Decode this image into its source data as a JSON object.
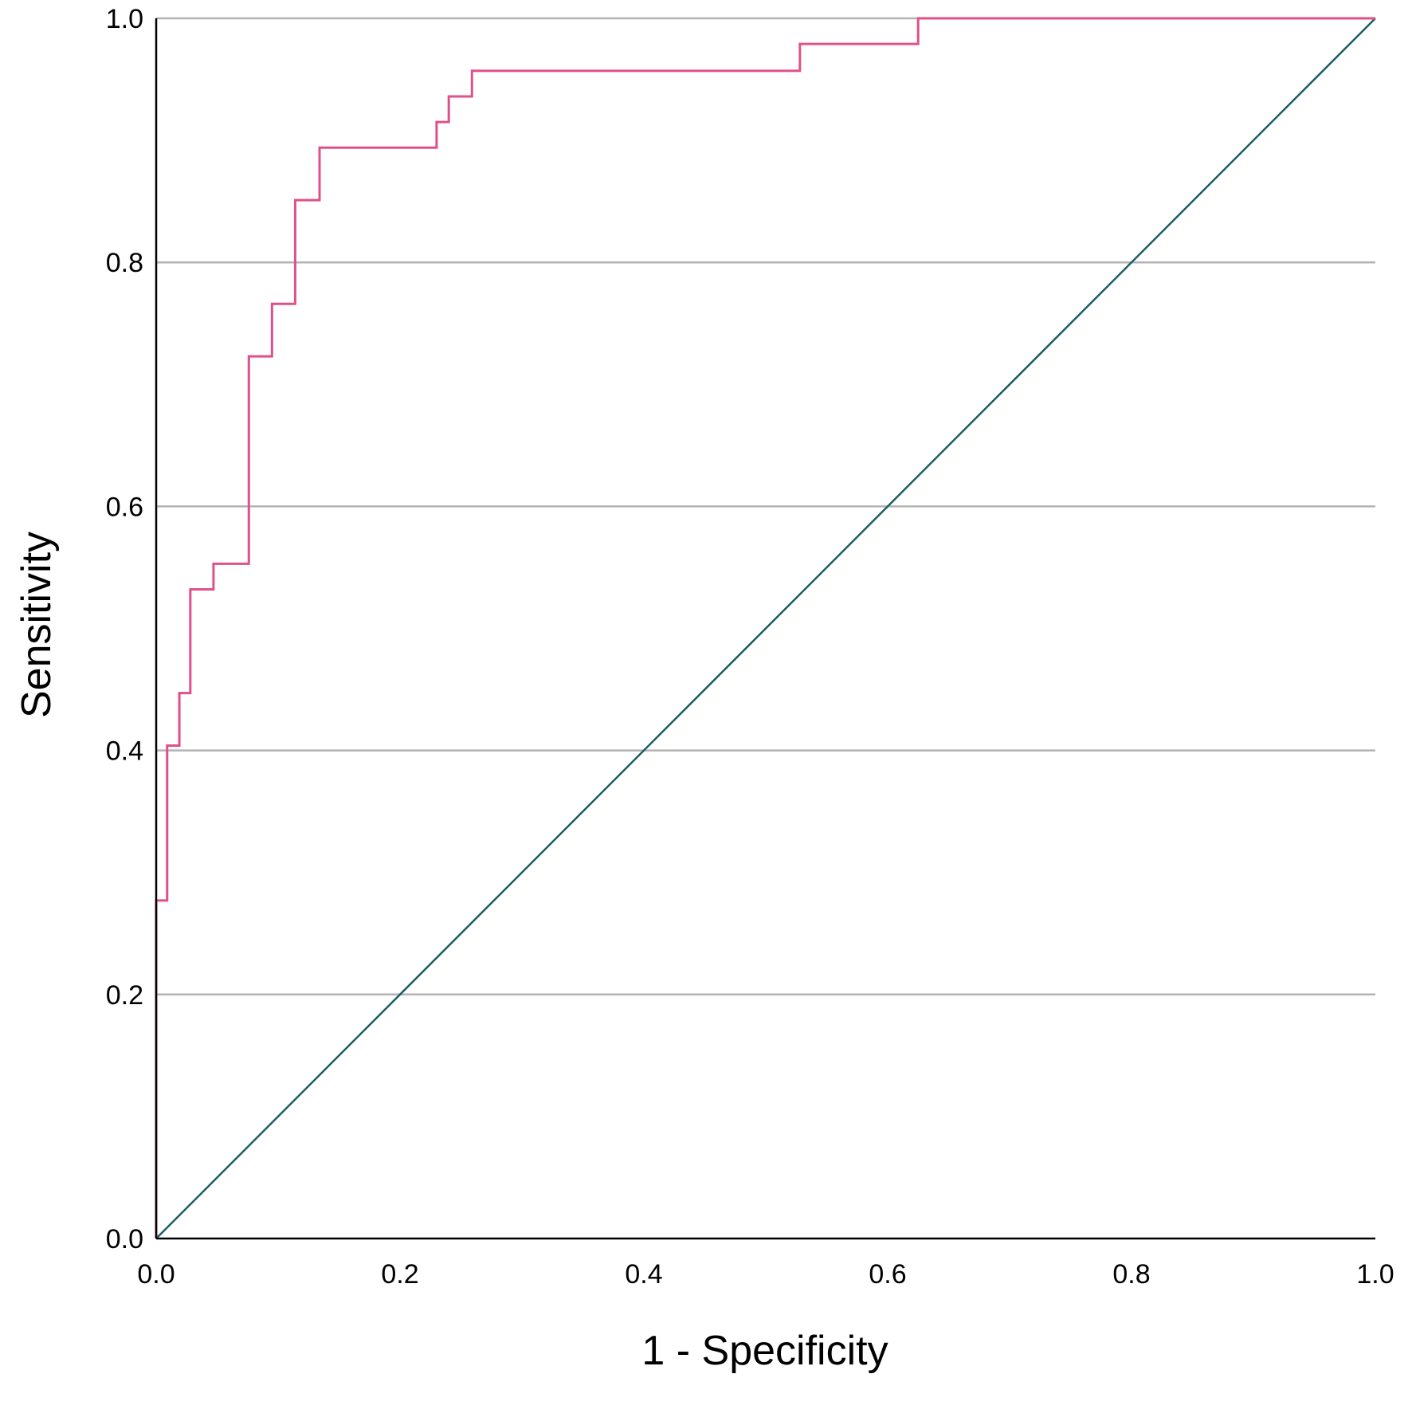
{
  "chart_data": {
    "type": "line",
    "title": "",
    "xlabel": "1 - Specificity",
    "ylabel": "Sensitivity",
    "xlim": [
      0,
      1
    ],
    "ylim": [
      0,
      1
    ],
    "x_ticks": [
      "0.0",
      "0.2",
      "0.4",
      "0.6",
      "0.8",
      "1.0"
    ],
    "y_ticks": [
      "0.0",
      "0.2",
      "0.4",
      "0.6",
      "0.8",
      "1.0"
    ],
    "grid": "horizontal",
    "legend": "none",
    "series": [
      {
        "type": "step",
        "color": "#e0508a",
        "x": [
          0.0,
          0.0,
          0.009,
          0.009,
          0.019,
          0.019,
          0.028,
          0.028,
          0.047,
          0.047,
          0.076,
          0.076,
          0.095,
          0.095,
          0.114,
          0.114,
          0.134,
          0.134,
          0.23,
          0.23,
          0.24,
          0.24,
          0.259,
          0.259,
          0.528,
          0.528,
          0.625,
          0.625,
          1.0
        ],
        "y": [
          0.0,
          0.277,
          0.277,
          0.404,
          0.404,
          0.447,
          0.447,
          0.532,
          0.532,
          0.553,
          0.553,
          0.723,
          0.723,
          0.766,
          0.766,
          0.851,
          0.851,
          0.894,
          0.894,
          0.915,
          0.915,
          0.936,
          0.936,
          0.957,
          0.957,
          0.979,
          0.979,
          1.0,
          1.0
        ]
      },
      {
        "type": "reference",
        "color": "#1b5e63",
        "x": [
          0,
          1
        ],
        "y": [
          0,
          1
        ]
      }
    ]
  },
  "colors": {
    "grid": "#b3b3b3",
    "axis": "#000000"
  }
}
